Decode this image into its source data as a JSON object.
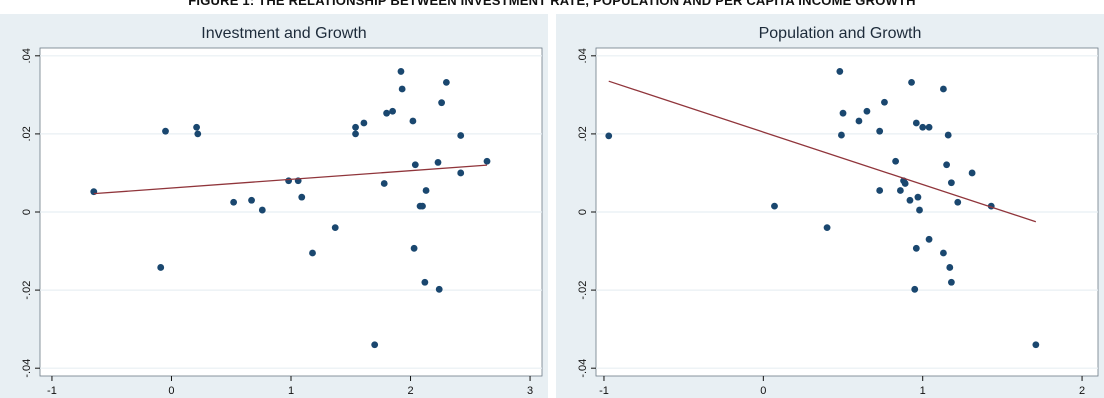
{
  "figure_title": "FIGURE 1: THE RELATIONSHIP BETWEEN INVESTMENT RATE, POPULATION AND PER CAPITA INCOME GROWTH",
  "colors": {
    "outer_background": "#e8eff3",
    "plot_background": "#ffffff",
    "points": "#1a476f",
    "fit_line": "#90353b",
    "grid": "#e8eff3"
  },
  "chart_data": [
    {
      "type": "scatter",
      "title": "Investment and Growth",
      "xlabel": "",
      "ylabel": "",
      "xlim": [
        -1.1,
        3.1
      ],
      "ylim": [
        -0.042,
        0.042
      ],
      "xticks": [
        "-1",
        "0",
        "1",
        "2",
        "3"
      ],
      "yticks": [
        ".04",
        ".02",
        "0",
        "-.02",
        "-.04"
      ],
      "grid": "horizontal",
      "points": [
        [
          -0.65,
          0.0052
        ],
        [
          -0.09,
          -0.0142
        ],
        [
          -0.05,
          0.0207
        ],
        [
          0.21,
          0.0217
        ],
        [
          0.22,
          0.02
        ],
        [
          0.52,
          0.0025
        ],
        [
          0.67,
          0.003
        ],
        [
          0.76,
          0.0005
        ],
        [
          0.98,
          0.008
        ],
        [
          1.06,
          0.008
        ],
        [
          1.09,
          0.0038
        ],
        [
          1.18,
          -0.0105
        ],
        [
          1.37,
          -0.004
        ],
        [
          1.54,
          0.0217
        ],
        [
          1.54,
          0.02
        ],
        [
          1.61,
          0.0228
        ],
        [
          1.7,
          -0.034
        ],
        [
          1.78,
          0.0073
        ],
        [
          1.8,
          0.0253
        ],
        [
          1.85,
          0.0258
        ],
        [
          1.92,
          0.036
        ],
        [
          1.93,
          0.0315
        ],
        [
          2.02,
          0.0233
        ],
        [
          2.03,
          -0.0093
        ],
        [
          2.04,
          0.0121
        ],
        [
          2.08,
          0.0015
        ],
        [
          2.1,
          0.0015
        ],
        [
          2.12,
          -0.018
        ],
        [
          2.13,
          0.0055
        ],
        [
          2.23,
          0.0127
        ],
        [
          2.24,
          -0.0198
        ],
        [
          2.26,
          0.028
        ],
        [
          2.3,
          0.0332
        ],
        [
          2.42,
          0.0196
        ],
        [
          2.42,
          0.01
        ],
        [
          2.64,
          0.013
        ]
      ],
      "fit_line": [
        [
          -0.65,
          0.0047
        ],
        [
          2.64,
          0.012
        ]
      ]
    },
    {
      "type": "scatter",
      "title": "Population and Growth",
      "xlabel": "",
      "ylabel": "",
      "xlim": [
        -1.05,
        2.1
      ],
      "ylim": [
        -0.042,
        0.042
      ],
      "xticks": [
        "-1",
        "0",
        "1",
        "2"
      ],
      "yticks": [
        ".04",
        ".02",
        "0",
        "-.02",
        "-.04"
      ],
      "grid": "horizontal",
      "points": [
        [
          -0.97,
          0.0195
        ],
        [
          0.07,
          0.0015
        ],
        [
          0.4,
          -0.004
        ],
        [
          0.48,
          0.036
        ],
        [
          0.49,
          0.0197
        ],
        [
          0.5,
          0.0253
        ],
        [
          0.6,
          0.0233
        ],
        [
          0.65,
          0.0258
        ],
        [
          0.73,
          0.0207
        ],
        [
          0.73,
          0.0055
        ],
        [
          0.76,
          0.0281
        ],
        [
          0.83,
          0.013
        ],
        [
          0.86,
          0.0055
        ],
        [
          0.88,
          0.008
        ],
        [
          0.89,
          0.0073
        ],
        [
          0.92,
          0.003
        ],
        [
          0.93,
          0.0332
        ],
        [
          0.95,
          -0.0198
        ],
        [
          0.96,
          0.0228
        ],
        [
          0.96,
          -0.0093
        ],
        [
          0.97,
          0.0038
        ],
        [
          0.98,
          0.0005
        ],
        [
          1.0,
          0.0217
        ],
        [
          1.04,
          0.0217
        ],
        [
          1.04,
          -0.007
        ],
        [
          1.13,
          0.0315
        ],
        [
          1.13,
          -0.0105
        ],
        [
          1.15,
          0.0121
        ],
        [
          1.16,
          0.0197
        ],
        [
          1.17,
          -0.0142
        ],
        [
          1.18,
          -0.018
        ],
        [
          1.18,
          0.0075
        ],
        [
          1.22,
          0.0025
        ],
        [
          1.31,
          0.01
        ],
        [
          1.43,
          0.0015
        ],
        [
          1.71,
          -0.034
        ]
      ],
      "fit_line": [
        [
          -0.97,
          0.0335
        ],
        [
          1.71,
          -0.0025
        ]
      ]
    }
  ]
}
